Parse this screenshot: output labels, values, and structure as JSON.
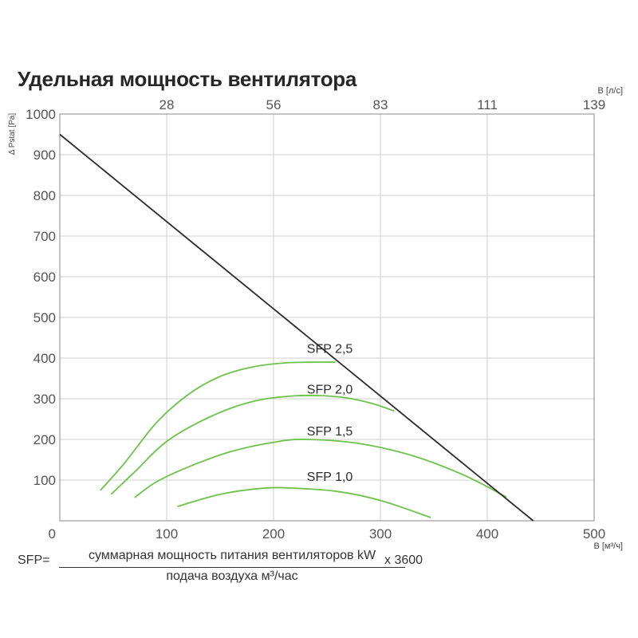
{
  "title": "Удельная мощность вентилятора",
  "chart_data": {
    "type": "line",
    "title": "Удельная мощность вентилятора",
    "xlabel": "В [м³/ч]",
    "x2label": "В [л/с]",
    "ylabel": "Δ Pstat [Pa]",
    "xlim": [
      0,
      500
    ],
    "ylim": [
      0,
      1000
    ],
    "x_ticks": [
      0,
      100,
      200,
      300,
      400,
      500
    ],
    "y_ticks": [
      100,
      200,
      300,
      400,
      500,
      600,
      700,
      800,
      900,
      1000
    ],
    "x2_ticks": [
      {
        "label": "28",
        "x": 100
      },
      {
        "label": "56",
        "x": 200
      },
      {
        "label": "83",
        "x": 300
      },
      {
        "label": "111",
        "x": 400
      },
      {
        "label": "139",
        "x": 500
      }
    ],
    "x_origin_label": "0",
    "grid": true,
    "line_color": "#2b2b2b",
    "curve_color": "#6cc24a",
    "fan_curve": {
      "x": [
        0,
        443
      ],
      "y": [
        950,
        0
      ]
    },
    "series": [
      {
        "name": "SFP 2,5",
        "label_at": [
          270,
          425
        ],
        "x": [
          38,
          60,
          90,
          120,
          150,
          180,
          210,
          240,
          258
        ],
        "y": [
          75,
          140,
          240,
          310,
          355,
          378,
          388,
          390,
          390
        ]
      },
      {
        "name": "SFP 2,0",
        "label_at": [
          270,
          325
        ],
        "x": [
          48,
          70,
          100,
          140,
          180,
          220,
          260,
          290,
          313
        ],
        "y": [
          65,
          120,
          195,
          255,
          293,
          307,
          305,
          290,
          270
        ]
      },
      {
        "name": "SFP 1,5",
        "label_at": [
          270,
          222
        ],
        "x": [
          70,
          90,
          120,
          160,
          200,
          230,
          280,
          330,
          380,
          418
        ],
        "y": [
          57,
          95,
          132,
          170,
          193,
          200,
          190,
          160,
          110,
          58
        ]
      },
      {
        "name": "SFP 1,0",
        "label_at": [
          270,
          110
        ],
        "x": [
          110,
          150,
          190,
          220,
          260,
          300,
          347
        ],
        "y": [
          35,
          65,
          80,
          80,
          72,
          50,
          8
        ]
      }
    ]
  },
  "formula": {
    "lhs": "SFP=",
    "numerator": "суммарная мощность питания вентиляторов kW",
    "denominator": "подача воздуха м³/час",
    "multiplier": "x 3600"
  }
}
